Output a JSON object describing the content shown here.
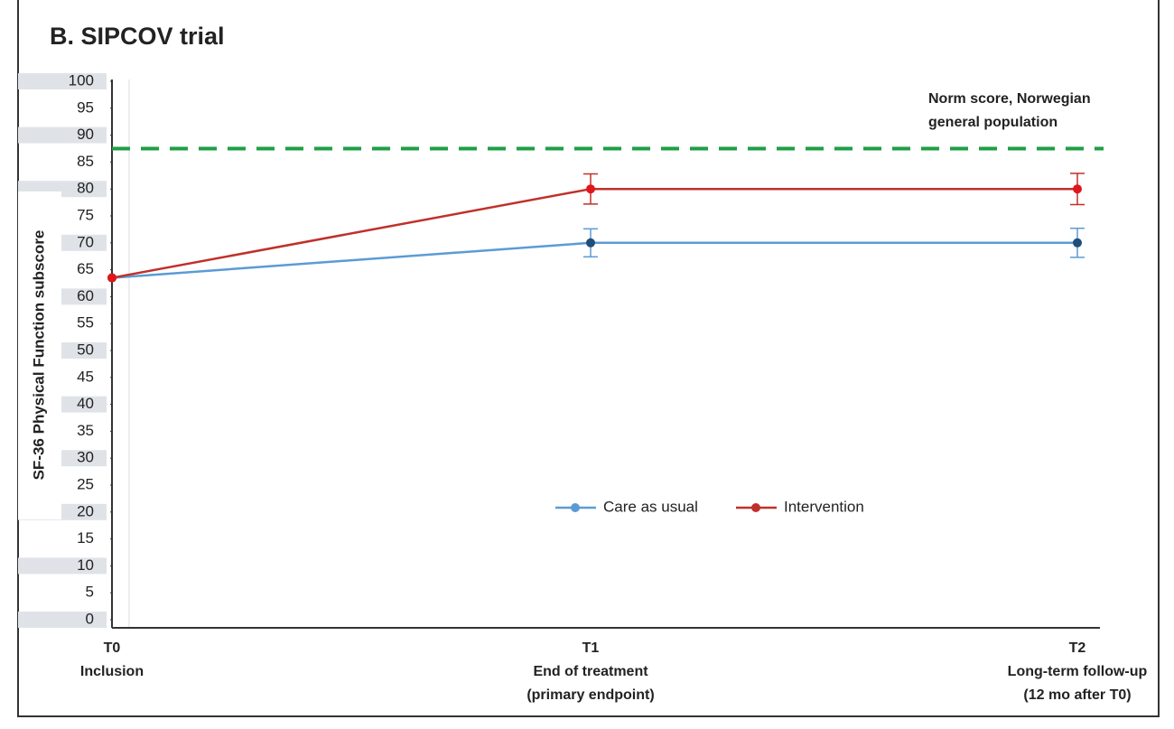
{
  "chart_data": {
    "type": "line",
    "title": "B. SIPCOV trial",
    "y_label": "SF-36 Physical Function subscore",
    "categories": [
      [
        "T0",
        "Inclusion"
      ],
      [
        "T1",
        "End of treatment",
        "(primary endpoint)"
      ],
      [
        "T2",
        "Long-term follow-up",
        "(12 mo after T0)"
      ]
    ],
    "series": [
      {
        "name": "Care as usual",
        "color": "#5b9bd5",
        "marker_color": "#1f4e79",
        "values": [
          63.5,
          70,
          70
        ],
        "errors": [
          null,
          2.6,
          2.7
        ]
      },
      {
        "name": "Intervention",
        "color": "#c0302a",
        "marker_color": "#e0161b",
        "values": [
          63.5,
          80,
          80
        ],
        "errors": [
          null,
          2.8,
          2.9
        ]
      }
    ],
    "reference_line": {
      "value": 87.5,
      "color": "#1e9e45",
      "label": [
        "Norm score, Norwegian",
        "general population"
      ]
    },
    "ylim": [
      0,
      100
    ],
    "yticks": [
      0,
      5,
      10,
      15,
      20,
      25,
      30,
      35,
      40,
      45,
      50,
      55,
      60,
      65,
      70,
      75,
      80,
      85,
      90,
      95,
      100
    ]
  }
}
